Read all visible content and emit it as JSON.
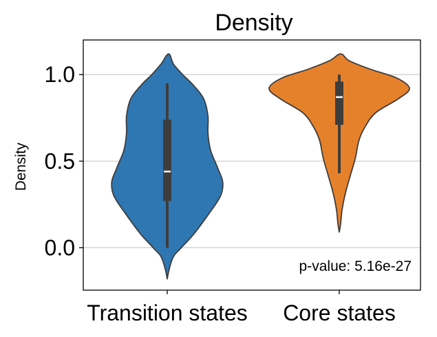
{
  "chart_data": {
    "type": "violin",
    "title": "Density",
    "xlabel": "",
    "ylabel": "Density",
    "ylim": [
      -0.245,
      1.2
    ],
    "yticks": [
      {
        "value": 0.0,
        "label": "0.0"
      },
      {
        "value": 0.5,
        "label": "0.5"
      },
      {
        "value": 1.0,
        "label": "1.0"
      }
    ],
    "grid": "horizontal",
    "categories": [
      "Transition states",
      "Core states"
    ],
    "series": [
      {
        "category": "Transition states",
        "color": "#2f77b2",
        "median": 0.44,
        "q1": 0.27,
        "q3": 0.74,
        "whisker_low": 0.0,
        "whisker_high": 0.95,
        "density_profile": [
          {
            "y": -0.18,
            "w": 0.0
          },
          {
            "y": -0.12,
            "w": 0.03
          },
          {
            "y": -0.05,
            "w": 0.09
          },
          {
            "y": 0.0,
            "w": 0.2
          },
          {
            "y": 0.08,
            "w": 0.38
          },
          {
            "y": 0.2,
            "w": 0.6
          },
          {
            "y": 0.3,
            "w": 0.76
          },
          {
            "y": 0.38,
            "w": 0.79
          },
          {
            "y": 0.46,
            "w": 0.72
          },
          {
            "y": 0.56,
            "w": 0.62
          },
          {
            "y": 0.66,
            "w": 0.58
          },
          {
            "y": 0.76,
            "w": 0.58
          },
          {
            "y": 0.86,
            "w": 0.52
          },
          {
            "y": 0.94,
            "w": 0.37
          },
          {
            "y": 1.0,
            "w": 0.22
          },
          {
            "y": 1.06,
            "w": 0.09
          },
          {
            "y": 1.12,
            "w": 0.02
          }
        ]
      },
      {
        "category": "Core states",
        "color": "#e6812b",
        "median": 0.87,
        "q1": 0.71,
        "q3": 0.96,
        "whisker_low": 0.43,
        "whisker_high": 1.0,
        "density_profile": [
          {
            "y": 0.09,
            "w": 0.0
          },
          {
            "y": 0.14,
            "w": 0.02
          },
          {
            "y": 0.22,
            "w": 0.04
          },
          {
            "y": 0.32,
            "w": 0.09
          },
          {
            "y": 0.42,
            "w": 0.16
          },
          {
            "y": 0.52,
            "w": 0.23
          },
          {
            "y": 0.62,
            "w": 0.28
          },
          {
            "y": 0.7,
            "w": 0.37
          },
          {
            "y": 0.78,
            "w": 0.52
          },
          {
            "y": 0.86,
            "w": 0.84
          },
          {
            "y": 0.92,
            "w": 1.0
          },
          {
            "y": 0.98,
            "w": 0.82
          },
          {
            "y": 1.03,
            "w": 0.45
          },
          {
            "y": 1.08,
            "w": 0.14
          },
          {
            "y": 1.12,
            "w": 0.02
          }
        ]
      }
    ],
    "annotation": "p-value: 5.16e-27"
  }
}
